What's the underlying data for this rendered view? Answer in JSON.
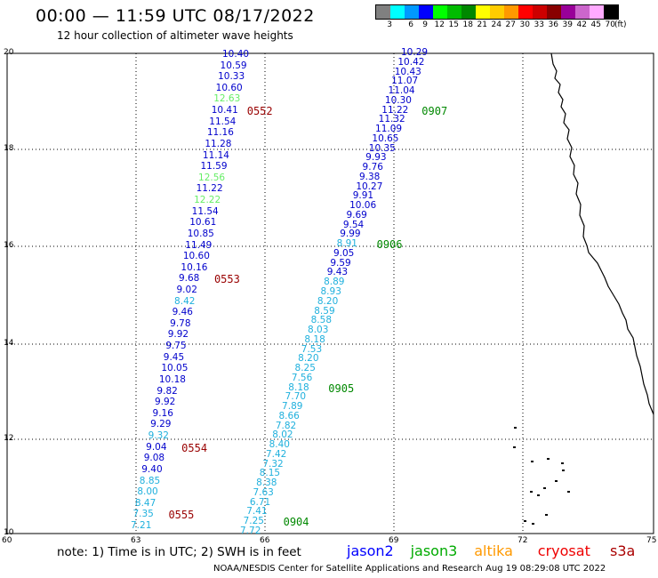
{
  "header": {
    "title": "00:00 — 11:59 UTC 08/17/2022",
    "subtitle": "12 hour collection of altimeter wave heights"
  },
  "colorscale": {
    "colors": [
      "#808080",
      "#00ffff",
      "#0099ff",
      "#0000ff",
      "#00ff00",
      "#00bb00",
      "#008800",
      "#ffff00",
      "#ffcc00",
      "#ff9900",
      "#ff0000",
      "#cc0000",
      "#880000",
      "#990099",
      "#cc66cc",
      "#ffaaff",
      "#000000"
    ],
    "labels": [
      "3",
      "6",
      "9",
      "12",
      "15",
      "18",
      "21",
      "24",
      "27",
      "30",
      "33",
      "36",
      "39",
      "42",
      "45",
      "70",
      "(ft)"
    ]
  },
  "axes": {
    "y_ticks": [
      "20",
      "18",
      "16",
      "14",
      "12",
      "10"
    ],
    "x_ticks": [
      "60",
      "63",
      "66",
      "69",
      "72",
      "75"
    ]
  },
  "track_a": {
    "values": [
      "10.40",
      "10.59",
      "10.33",
      "10.60",
      "12.63",
      "10.41",
      "11.54",
      "11.16",
      "11.28",
      "11.14",
      "11.59",
      "12.56",
      "11.22",
      "12.22",
      "11.54",
      "10.61",
      "10.85",
      "11.49",
      "10.60",
      "10.16",
      "9.68",
      "9.02",
      "8.42",
      "9.46",
      "9.78",
      "9.92",
      "9.75",
      "9.45",
      "10.05",
      "10.18",
      "9.82",
      "9.92",
      "9.16",
      "9.29",
      "9.32",
      "9.04",
      "9.08",
      "9.40",
      "8.85",
      "8.00",
      "8.47",
      "7.35",
      "7.21"
    ],
    "colors": [
      "b",
      "b",
      "b",
      "b",
      "g",
      "b",
      "b",
      "b",
      "b",
      "b",
      "b",
      "g",
      "b",
      "g",
      "b",
      "b",
      "b",
      "b",
      "b",
      "b",
      "b",
      "b",
      "c",
      "b",
      "b",
      "b",
      "b",
      "b",
      "b",
      "b",
      "b",
      "b",
      "b",
      "b",
      "c",
      "b",
      "b",
      "b",
      "c",
      "c",
      "c",
      "c",
      "c"
    ],
    "times": [
      "0552",
      "0553",
      "0554",
      "0555"
    ]
  },
  "track_b": {
    "values": [
      "10.29",
      "10.42",
      "10.43",
      "11.07",
      "11.04",
      "10.30",
      "11.22",
      "11.32",
      "11.09",
      "10.65",
      "10.35",
      "9.93",
      "9.76",
      "9.38",
      "10.27",
      "9.91",
      "10.06",
      "9.69",
      "9.54",
      "9.99",
      "8.91",
      "9.05",
      "9.59",
      "9.43",
      "8.89",
      "8.93",
      "8.20",
      "8.59",
      "8.58",
      "8.03",
      "8.18",
      "7.53",
      "8.20",
      "8.25",
      "7.56",
      "8.18",
      "7.70",
      "7.89",
      "8.66",
      "7.82",
      "8.02",
      "8.40",
      "7.42",
      "7.32",
      "8.15",
      "8.38",
      "7.63",
      "6.71",
      "7.41",
      "7.25",
      "7.72"
    ],
    "colors": [
      "b",
      "b",
      "b",
      "b",
      "b",
      "b",
      "b",
      "b",
      "b",
      "b",
      "b",
      "b",
      "b",
      "b",
      "b",
      "b",
      "b",
      "b",
      "b",
      "b",
      "c",
      "b",
      "b",
      "b",
      "c",
      "c",
      "c",
      "c",
      "c",
      "c",
      "c",
      "c",
      "c",
      "c",
      "c",
      "c",
      "c",
      "c",
      "c",
      "c",
      "c",
      "c",
      "c",
      "c",
      "c",
      "c",
      "c",
      "c",
      "c",
      "c",
      "c"
    ],
    "times": [
      "0907",
      "0906",
      "0905",
      "0904"
    ]
  },
  "legend_colors": {
    "b": "#0000cc",
    "c": "#1fb0dd",
    "g": "#66ee66",
    "time_a": "#990000",
    "time_b": "#008800"
  },
  "note": "note:  1) Time is in UTC; 2) SWH is in feet",
  "missions": [
    {
      "label": "jason2",
      "color": "#0000ff"
    },
    {
      "label": "jason3",
      "color": "#00aa00"
    },
    {
      "label": "altika",
      "color": "#ff9900"
    },
    {
      "label": "cryosat",
      "color": "#ee0000"
    },
    {
      "label": "s3a",
      "color": "#aa0000"
    }
  ],
  "footer": "NOAA/NESDIS Center for Satellite Applications and Research    Aug 19 08:29:08 UTC 2022"
}
